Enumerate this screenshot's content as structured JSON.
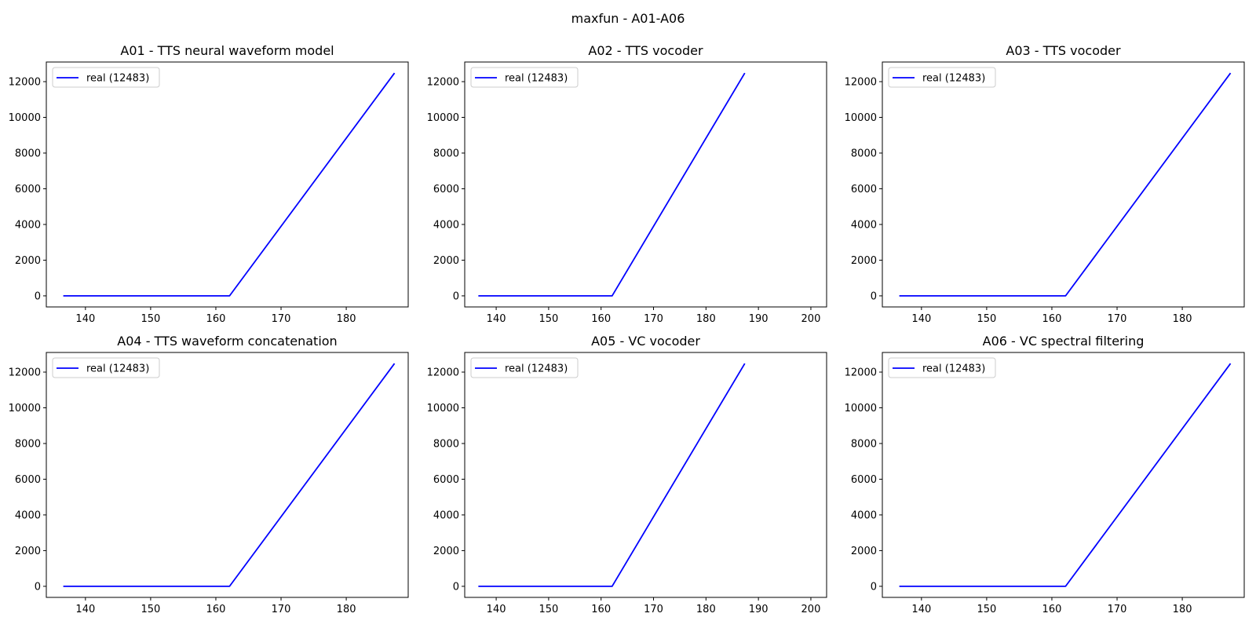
{
  "figure_title": "maxfun - A01-A06",
  "line_color": "#0000ff",
  "chart_data": [
    {
      "type": "line",
      "title": "A01 - TTS neural waveform model",
      "xlim": [
        134,
        189.5
      ],
      "ylim": [
        -620,
        13100
      ],
      "xticks": [
        140,
        150,
        160,
        170,
        180
      ],
      "yticks": [
        0,
        2000,
        4000,
        6000,
        8000,
        10000,
        12000
      ],
      "legend": "upper left",
      "series": [
        {
          "name": "real (12483)",
          "x": [
            136.6,
            162.1,
            187.4
          ],
          "y": [
            0,
            0,
            12483
          ]
        }
      ]
    },
    {
      "type": "line",
      "title": "A02 - TTS vocoder",
      "xlim": [
        134,
        203
      ],
      "ylim": [
        -620,
        13100
      ],
      "xticks": [
        140,
        150,
        160,
        170,
        180,
        190,
        200
      ],
      "yticks": [
        0,
        2000,
        4000,
        6000,
        8000,
        10000,
        12000
      ],
      "legend": "upper left",
      "series": [
        {
          "name": "real (12483)",
          "x": [
            136.6,
            162.1,
            187.4
          ],
          "y": [
            0,
            0,
            12483
          ]
        }
      ]
    },
    {
      "type": "line",
      "title": "A03 - TTS vocoder",
      "xlim": [
        134,
        189.5
      ],
      "ylim": [
        -620,
        13100
      ],
      "xticks": [
        140,
        150,
        160,
        170,
        180
      ],
      "yticks": [
        0,
        2000,
        4000,
        6000,
        8000,
        10000,
        12000
      ],
      "legend": "upper left",
      "series": [
        {
          "name": "real (12483)",
          "x": [
            136.6,
            162.1,
            187.4
          ],
          "y": [
            0,
            0,
            12483
          ]
        }
      ]
    },
    {
      "type": "line",
      "title": "A04 - TTS waveform concatenation",
      "xlim": [
        134,
        189.5
      ],
      "ylim": [
        -620,
        13100
      ],
      "xticks": [
        140,
        150,
        160,
        170,
        180
      ],
      "yticks": [
        0,
        2000,
        4000,
        6000,
        8000,
        10000,
        12000
      ],
      "legend": "upper left",
      "series": [
        {
          "name": "real (12483)",
          "x": [
            136.6,
            162.1,
            187.4
          ],
          "y": [
            0,
            0,
            12483
          ]
        }
      ]
    },
    {
      "type": "line",
      "title": "A05 - VC vocoder",
      "xlim": [
        134,
        203
      ],
      "ylim": [
        -620,
        13100
      ],
      "xticks": [
        140,
        150,
        160,
        170,
        180,
        190,
        200
      ],
      "yticks": [
        0,
        2000,
        4000,
        6000,
        8000,
        10000,
        12000
      ],
      "legend": "upper left",
      "series": [
        {
          "name": "real (12483)",
          "x": [
            136.6,
            162.1,
            187.4
          ],
          "y": [
            0,
            0,
            12483
          ]
        }
      ]
    },
    {
      "type": "line",
      "title": "A06 - VC spectral filtering",
      "xlim": [
        134,
        189.5
      ],
      "ylim": [
        -620,
        13100
      ],
      "xticks": [
        140,
        150,
        160,
        170,
        180
      ],
      "yticks": [
        0,
        2000,
        4000,
        6000,
        8000,
        10000,
        12000
      ],
      "legend": "upper left",
      "series": [
        {
          "name": "real (12483)",
          "x": [
            136.6,
            162.1,
            187.4
          ],
          "y": [
            0,
            0,
            12483
          ]
        }
      ]
    }
  ]
}
